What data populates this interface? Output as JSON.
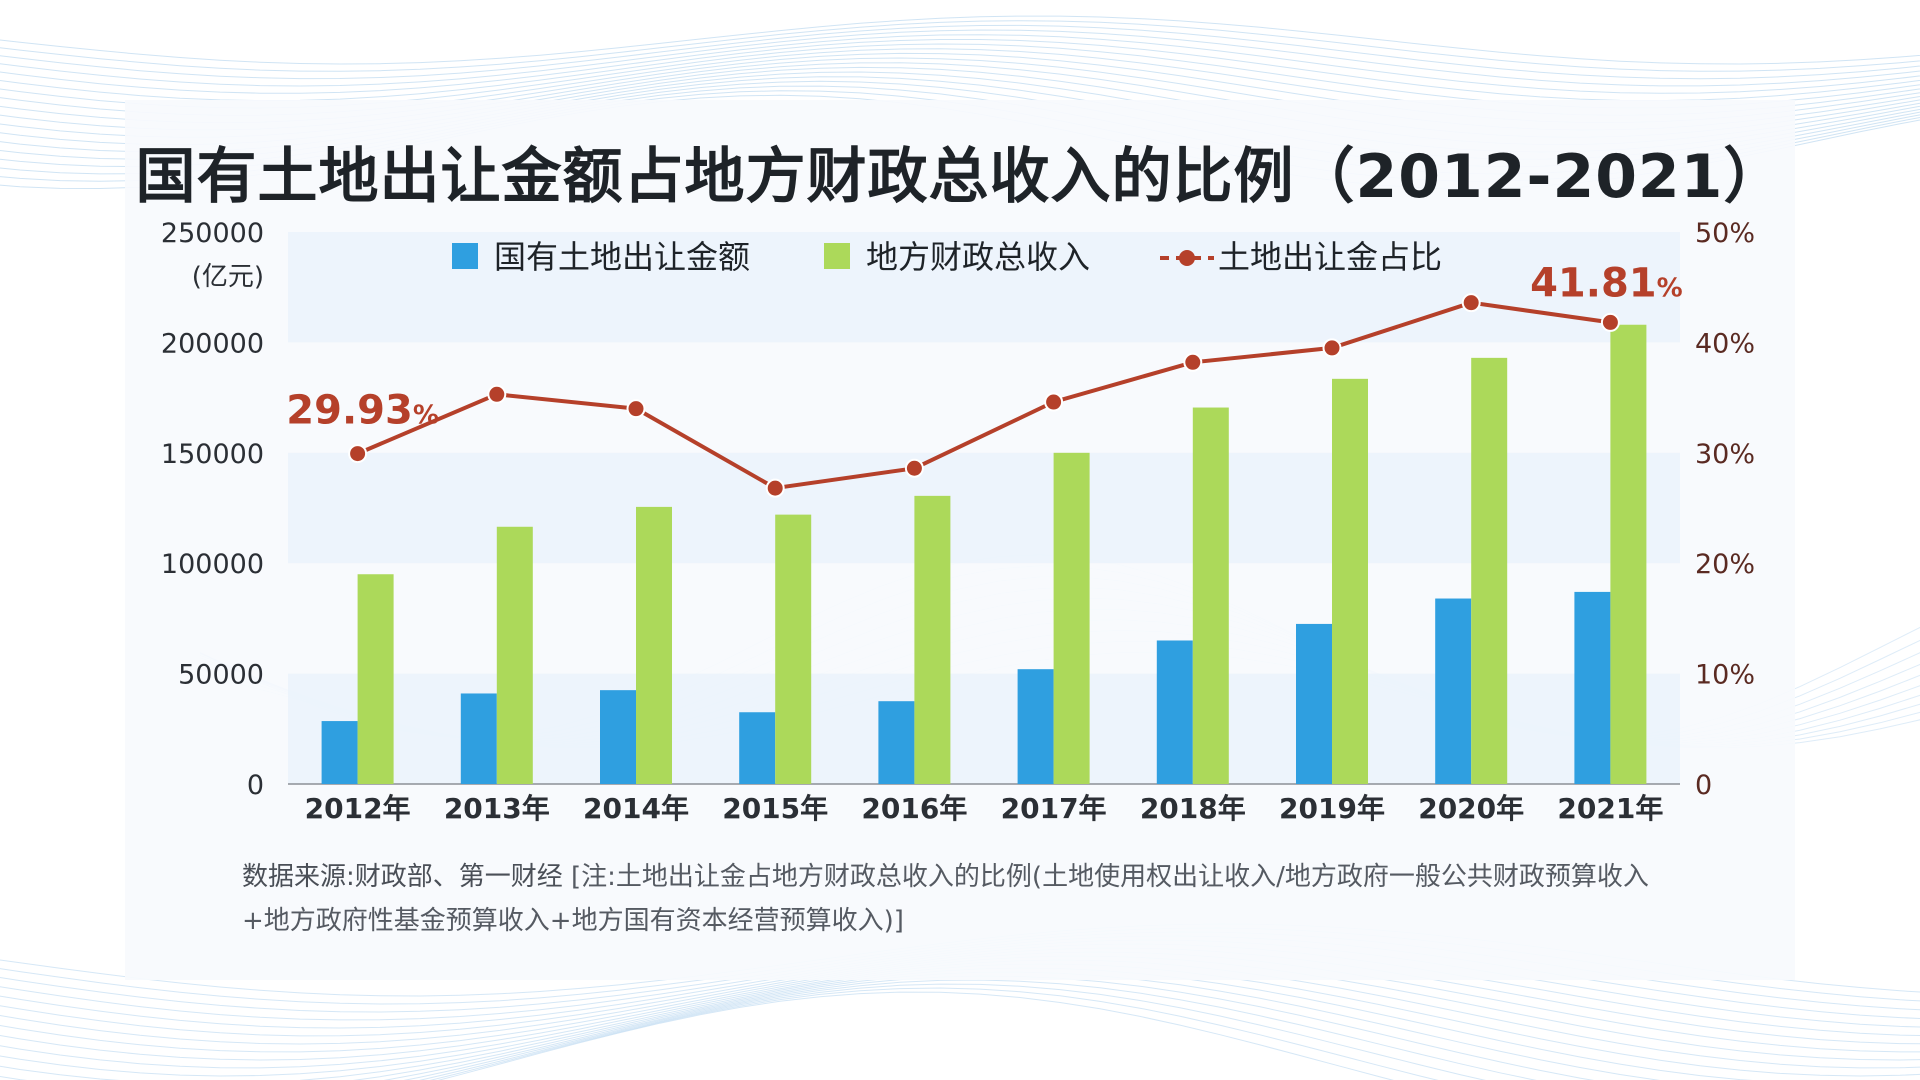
{
  "chart_data": {
    "type": "bar+line",
    "title": "国有土地出让金额占地方财政总收入的比例（2012-2021）",
    "categories": [
      "2012年",
      "2013年",
      "2014年",
      "2015年",
      "2016年",
      "2017年",
      "2018年",
      "2019年",
      "2020年",
      "2021年"
    ],
    "series": [
      {
        "name": "国有土地出让金额",
        "type": "bar",
        "axis": "left",
        "color": "#2f9fe0",
        "values": [
          28500,
          41000,
          42500,
          32500,
          37500,
          52000,
          65000,
          72500,
          84000,
          87000
        ]
      },
      {
        "name": "地方财政总收入",
        "type": "bar",
        "axis": "left",
        "color": "#acd95a",
        "values": [
          95000,
          116500,
          125500,
          122000,
          130500,
          150000,
          170500,
          183500,
          193000,
          208000
        ]
      },
      {
        "name": "土地出让金占比",
        "type": "line",
        "axis": "right",
        "color": "#b5402a",
        "values": [
          29.93,
          35.3,
          34.0,
          26.8,
          28.6,
          34.6,
          38.2,
          39.5,
          43.6,
          41.81
        ]
      }
    ],
    "left_axis": {
      "unit": "(亿元)",
      "ylim": [
        0,
        250000
      ],
      "ticks": [
        "0",
        "50000",
        "100000",
        "150000",
        "200000",
        "250000"
      ]
    },
    "right_axis": {
      "ylim": [
        0,
        50
      ],
      "ticks": [
        "0",
        "10%",
        "20%",
        "30%",
        "40%",
        "50%"
      ]
    },
    "annotations": [
      {
        "index": 0,
        "number": "29.93",
        "suffix": "%"
      },
      {
        "index": 9,
        "number": "41.81",
        "suffix": "%"
      }
    ],
    "legend_position": "top-center"
  },
  "source_text": "数据来源:财政部、第一财经",
  "note_line1": "[注:土地出让金占地方财政总收入的比例(土地使用权出让收入/地方政府一般公共财政预算收入",
  "note_line2": "+地方政府性基金预算收入+地方国有资本经营预算收入)]"
}
